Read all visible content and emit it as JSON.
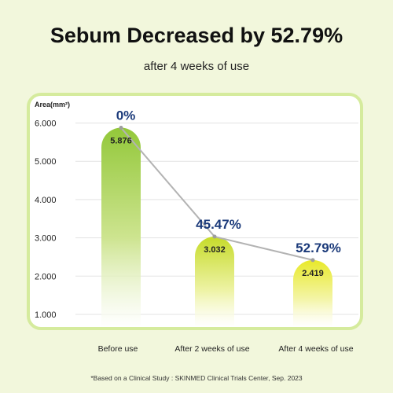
{
  "title": "Sebum Decreased by 52.79%",
  "subtitle": "after 4 weeks of use",
  "footnote": "*Based on a Clinical Study : SKINMED Clinical Trials Center, Sep. 2023",
  "chart_data": {
    "type": "bar",
    "title": "Sebum Decreased by 52.79%",
    "subtitle": "after 4 weeks of use",
    "ylabel": "Area(mm²)",
    "xlabel": "",
    "ylim": [
      0.5,
      6.3
    ],
    "yticks": [
      1.0,
      2.0,
      3.0,
      4.0,
      5.0,
      6.0
    ],
    "ytick_labels": [
      "1.000",
      "2.000",
      "3.000",
      "4.000",
      "5.000",
      "6.000"
    ],
    "categories": [
      "Before use",
      "After 2 weeks of use",
      "After 4 weeks of use"
    ],
    "values": [
      5.876,
      3.032,
      2.419
    ],
    "value_labels": [
      "5.876",
      "3.032",
      "2.419"
    ],
    "decrease_labels": [
      "0%",
      "45.47%",
      "52.79%"
    ],
    "grid": true,
    "line_overlay": true,
    "colors": {
      "bar_top_first": "#93c83a",
      "bar_top_other": "#e4e82c",
      "line": "#b3b3b3",
      "percent_text": "#1b3a7a",
      "grid": "#e3e3e3"
    }
  }
}
